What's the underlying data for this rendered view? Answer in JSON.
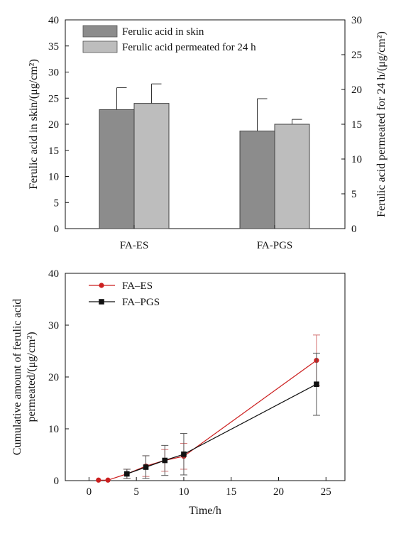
{
  "chart_data": [
    {
      "type": "bar",
      "categories": [
        "FA-ES",
        "FA-PGS"
      ],
      "series": [
        {
          "name": "Ferulic acid in skin",
          "axis": "left",
          "values": [
            22.8,
            18.7
          ],
          "errors": [
            4.2,
            6.2
          ],
          "color": "#8c8c8c"
        },
        {
          "name": "Ferulic acid permeated for 24 h",
          "axis": "right",
          "values": [
            18.0,
            15.0
          ],
          "errors": [
            2.8,
            0.7
          ],
          "color": "#bdbdbd"
        }
      ],
      "ylabel": "Ferulic acid in skin/(μg/cm²)",
      "ylim": [
        0,
        40
      ],
      "yticks": [
        "0",
        "5",
        "10",
        "15",
        "20",
        "25",
        "30",
        "35",
        "40"
      ],
      "y2label": "Ferulic acid permeated for 24 h/(μg/cm²)",
      "y2lim": [
        0,
        30
      ],
      "y2ticks": [
        "0",
        "5",
        "10",
        "15",
        "20",
        "25",
        "30"
      ],
      "legend": "top-left",
      "grid": false
    },
    {
      "type": "line",
      "series": [
        {
          "name": "FA–ES",
          "color": "#cc1f1f",
          "marker": "circle",
          "x": [
            1,
            2,
            4,
            6,
            8,
            10,
            24
          ],
          "y": [
            0.1,
            0.1,
            1.3,
            2.8,
            3.9,
            4.7,
            23.2
          ],
          "errors": [
            0,
            0,
            0.9,
            2.0,
            2.1,
            2.5,
            4.9
          ]
        },
        {
          "name": "FA–PGS",
          "color": "#111111",
          "marker": "square",
          "x": [
            4,
            6,
            8,
            10,
            24
          ],
          "y": [
            1.3,
            2.6,
            3.9,
            5.1,
            18.6
          ],
          "errors": [
            0.9,
            2.2,
            2.9,
            4.0,
            6.0
          ]
        }
      ],
      "xlabel": "Time/h",
      "ylabel": "Cumulative amount of ferulic acid permeated/(μg/cm²)",
      "ylabel_lines": [
        "Cumulative amount of ferulic acid",
        "permeated/(μg/cm²)"
      ],
      "xlim": [
        -2.5,
        27
      ],
      "xticks": [
        "0",
        "5",
        "10",
        "15",
        "20",
        "25"
      ],
      "ylim": [
        0,
        40
      ],
      "yticks": [
        "0",
        "10",
        "20",
        "30",
        "40"
      ],
      "legend": "top-left",
      "grid": false
    }
  ]
}
